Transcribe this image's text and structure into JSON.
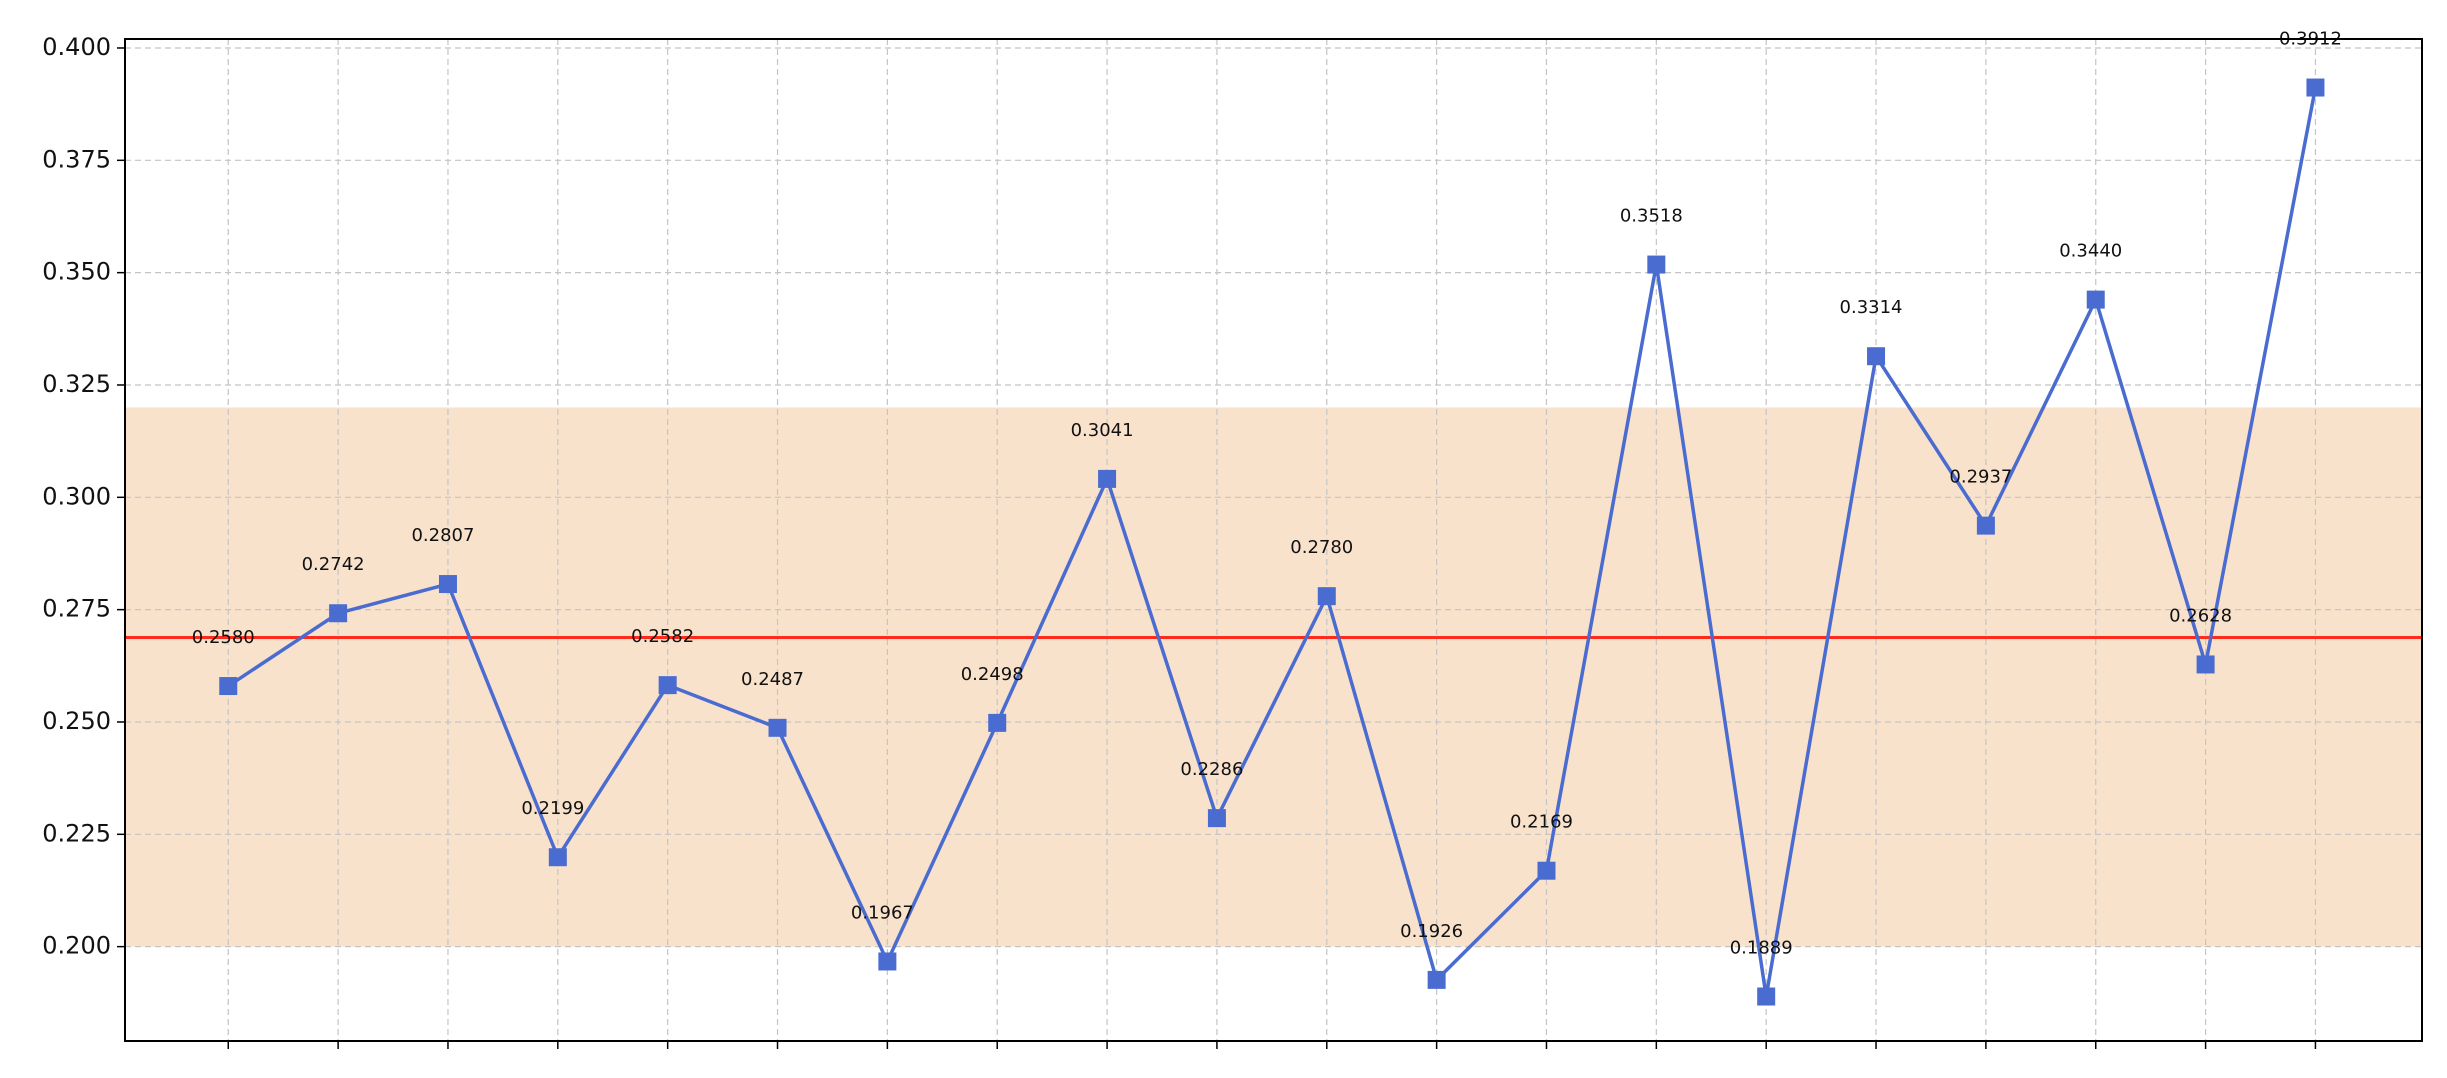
{
  "chart_data": {
    "type": "line",
    "categories": [
      null,
      null,
      null,
      null,
      null,
      null,
      null,
      null,
      null,
      null,
      null,
      null,
      null,
      null,
      null,
      null,
      null,
      null,
      null,
      null
    ],
    "series": [
      {
        "color": "#4a6cd0",
        "values": [
          0.258,
          0.2742,
          0.2807,
          0.2199,
          0.2582,
          0.2487,
          0.1967,
          0.2498,
          0.3041,
          0.2286,
          0.278,
          0.1926,
          0.2169,
          0.3518,
          0.1889,
          0.3314,
          0.2937,
          0.344,
          0.2628,
          0.3912
        ],
        "value_labels": [
          "0.2580",
          "0.2742",
          "0.2807",
          "0.2199",
          "0.2582",
          "0.2487",
          "0.1967",
          "0.2498",
          "0.3041",
          "0.2286",
          "0.2780",
          "0.1926",
          "0.2169",
          "0.3518",
          "0.1889",
          "0.3314",
          "0.2937",
          "0.3440",
          "0.2628",
          "0.3912"
        ]
      }
    ],
    "ylim": [
      0.179,
      0.402
    ],
    "yticks": [
      {
        "value": 0.2,
        "label": "0.200"
      },
      {
        "value": 0.225,
        "label": "0.225"
      },
      {
        "value": 0.25,
        "label": "0.250"
      },
      {
        "value": 0.275,
        "label": "0.275"
      },
      {
        "value": 0.3,
        "label": "0.300"
      },
      {
        "value": 0.325,
        "label": "0.325"
      },
      {
        "value": 0.35,
        "label": "0.350"
      },
      {
        "value": 0.375,
        "label": "0.375"
      },
      {
        "value": 0.4,
        "label": "0.400"
      }
    ],
    "grid": true,
    "band": {
      "range": [
        0.2,
        0.32
      ],
      "color": "#f9e2cc"
    },
    "reference_line": {
      "value": 0.2688,
      "color": "#ff2a1a"
    }
  }
}
